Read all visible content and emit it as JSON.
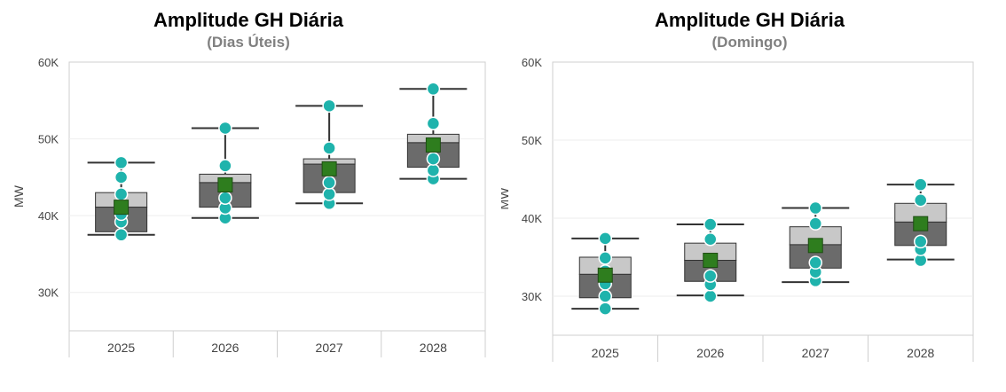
{
  "chart_data": [
    {
      "type": "box",
      "title": "Amplitude GH Diária",
      "subtitle": "(Dias Úteis)",
      "ylabel": "MW",
      "ylim": [
        25000,
        60000
      ],
      "yticks": [
        30000,
        40000,
        50000,
        60000
      ],
      "ytick_labels": [
        "30K",
        "40K",
        "50K",
        "60K"
      ],
      "categories": [
        "2025",
        "2026",
        "2027",
        "2028"
      ],
      "boxes": [
        {
          "whisker_low": 37500,
          "q1": 37900,
          "median": 41100,
          "q3": 43000,
          "whisker_high": 46900,
          "mean": 41100,
          "points": [
            37500,
            39200,
            40200,
            42800,
            45000,
            46900
          ]
        },
        {
          "whisker_low": 39700,
          "q1": 41100,
          "median": 44300,
          "q3": 45400,
          "whisker_high": 51400,
          "mean": 44000,
          "points": [
            39700,
            41000,
            42300,
            44000,
            46500,
            51400
          ]
        },
        {
          "whisker_low": 41600,
          "q1": 43000,
          "median": 46700,
          "q3": 47400,
          "whisker_high": 54300,
          "mean": 46100,
          "points": [
            41600,
            42800,
            44300,
            46000,
            48800,
            54300
          ]
        },
        {
          "whisker_low": 44800,
          "q1": 46300,
          "median": 49500,
          "q3": 50600,
          "whisker_high": 56500,
          "mean": 49200,
          "points": [
            44800,
            45900,
            47400,
            49200,
            52000,
            56500
          ]
        }
      ]
    },
    {
      "type": "box",
      "title": "Amplitude GH Diária",
      "subtitle": "(Domingo)",
      "ylabel": "MW",
      "ylim": [
        25000,
        60000
      ],
      "yticks": [
        30000,
        40000,
        50000,
        60000
      ],
      "ytick_labels": [
        "30K",
        "40K",
        "50K",
        "60K"
      ],
      "categories": [
        "2025",
        "2026",
        "2027",
        "2028"
      ],
      "boxes": [
        {
          "whisker_low": 28400,
          "q1": 29800,
          "median": 32800,
          "q3": 35000,
          "whisker_high": 37400,
          "mean": 32700,
          "points": [
            28400,
            30000,
            31600,
            33200,
            34900,
            37400
          ]
        },
        {
          "whisker_low": 30100,
          "q1": 31900,
          "median": 34600,
          "q3": 36800,
          "whisker_high": 39200,
          "mean": 34600,
          "points": [
            30000,
            31500,
            32600,
            34600,
            37300,
            39200
          ]
        },
        {
          "whisker_low": 31800,
          "q1": 33600,
          "median": 36600,
          "q3": 38900,
          "whisker_high": 41300,
          "mean": 36500,
          "points": [
            32000,
            33100,
            34300,
            36500,
            39300,
            41300
          ]
        },
        {
          "whisker_low": 34700,
          "q1": 36500,
          "median": 39500,
          "q3": 41900,
          "whisker_high": 44300,
          "mean": 39300,
          "points": [
            34600,
            36000,
            37000,
            39300,
            42300,
            44300
          ]
        }
      ]
    }
  ],
  "colors": {
    "box_upper": "#c8c8c8",
    "box_lower": "#6b6b6b",
    "whisker": "#333333",
    "point": "#1fb3ac",
    "mean_marker": "#2e7d1e",
    "grid": "#eeeeee",
    "frame": "#cfcfcf",
    "tick_text": "#444444"
  }
}
